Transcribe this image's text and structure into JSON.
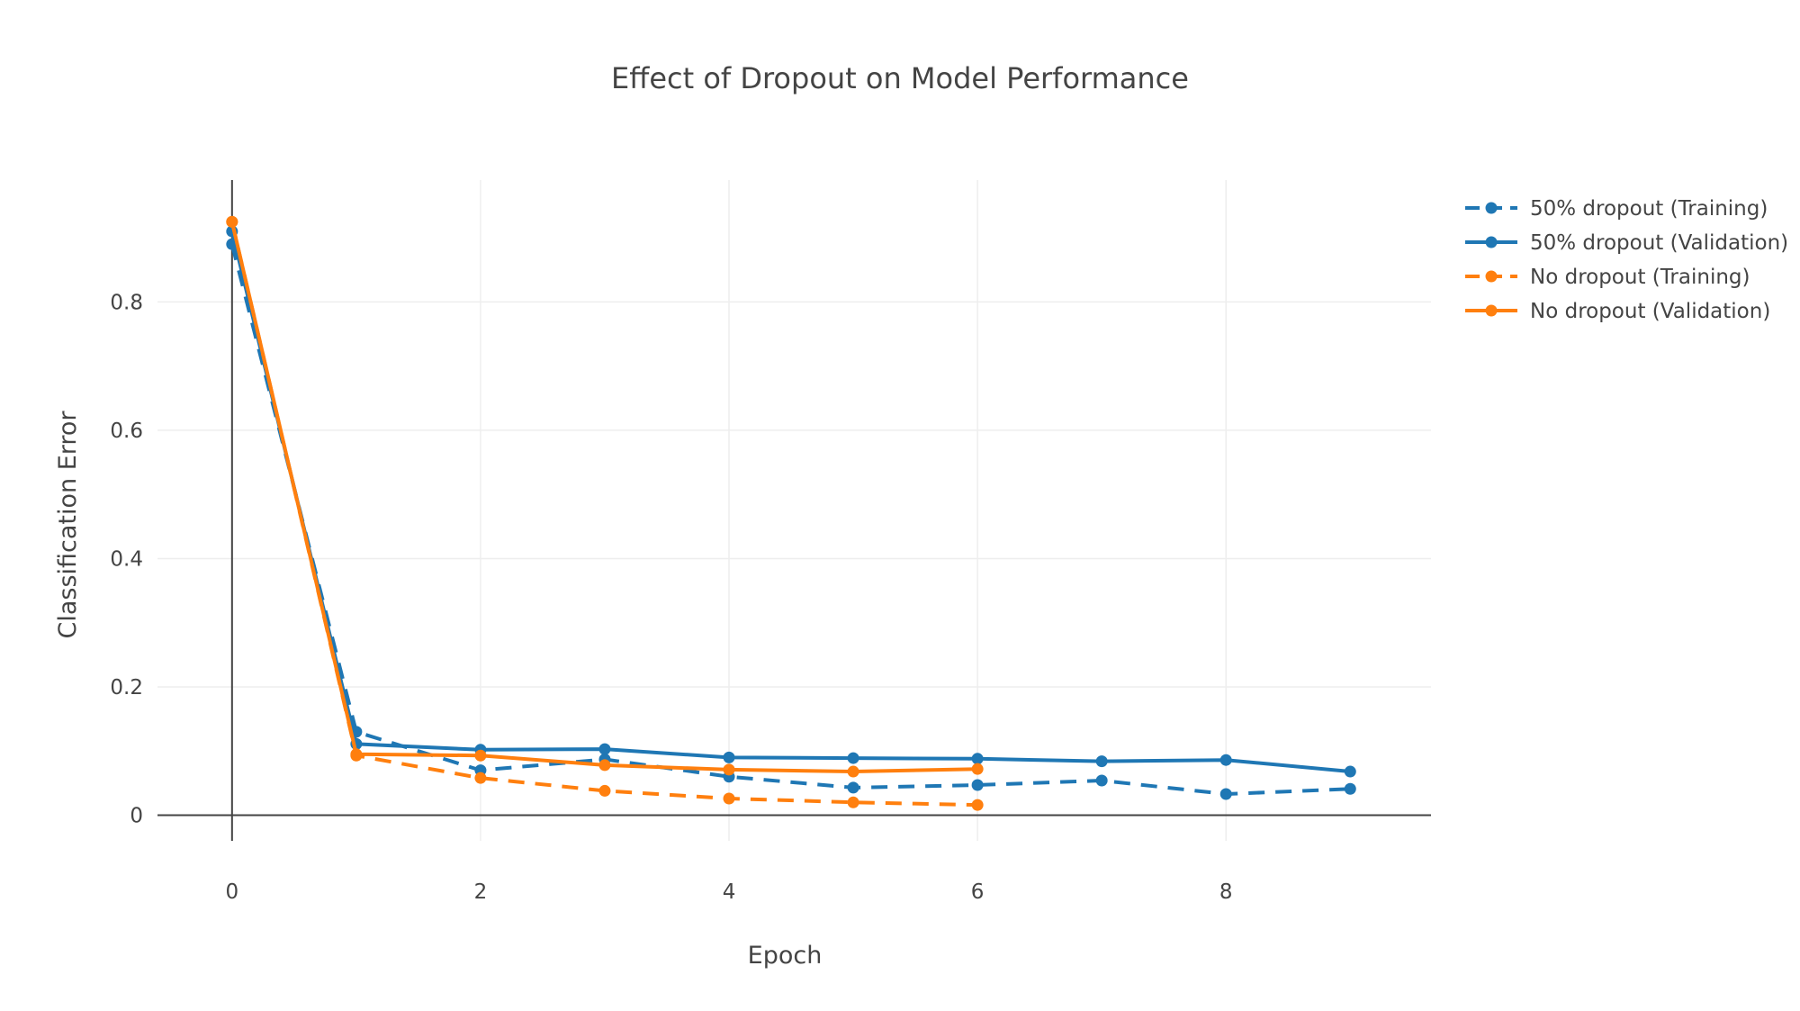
{
  "chart_data": {
    "type": "line",
    "title": "Effect of Dropout on Model Performance",
    "xlabel": "Epoch",
    "ylabel": "Classification Error",
    "xlim": [
      -0.6,
      9.65
    ],
    "ylim": [
      -0.04,
      0.99
    ],
    "xticks": [
      "0",
      "2",
      "4",
      "6",
      "8"
    ],
    "xtick_values": [
      0,
      2,
      4,
      6,
      8
    ],
    "yticks": [
      "0",
      "0.2",
      "0.4",
      "0.6",
      "0.8"
    ],
    "ytick_values": [
      0,
      0.2,
      0.4,
      0.6,
      0.8
    ],
    "grid": true,
    "legend_position": "top-right",
    "series": [
      {
        "name": "50% dropout (Training)",
        "color": "#1f77b4",
        "dash": "dashed",
        "x": [
          0,
          1,
          2,
          3,
          4,
          5,
          6,
          7,
          8,
          9
        ],
        "y": [
          0.89,
          0.13,
          0.07,
          0.087,
          0.06,
          0.043,
          0.047,
          0.054,
          0.033,
          0.041
        ]
      },
      {
        "name": "50% dropout (Validation)",
        "color": "#1f77b4",
        "dash": "solid",
        "x": [
          0,
          1,
          2,
          3,
          4,
          5,
          6,
          7,
          8,
          9
        ],
        "y": [
          0.91,
          0.111,
          0.102,
          0.103,
          0.09,
          0.089,
          0.088,
          0.084,
          0.086,
          0.068
        ]
      },
      {
        "name": "No dropout (Training)",
        "color": "#ff7f0e",
        "dash": "dashed",
        "x": [
          0,
          1,
          2,
          3,
          4,
          5,
          6
        ],
        "y": [
          0.925,
          0.093,
          0.058,
          0.038,
          0.026,
          0.02,
          0.016
        ]
      },
      {
        "name": "No dropout (Validation)",
        "color": "#ff7f0e",
        "dash": "solid",
        "x": [
          0,
          1,
          2,
          3,
          4,
          5,
          6
        ],
        "y": [
          0.925,
          0.095,
          0.093,
          0.078,
          0.071,
          0.068,
          0.072
        ]
      }
    ]
  }
}
